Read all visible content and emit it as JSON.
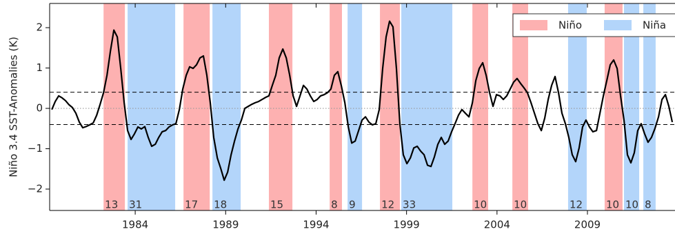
{
  "chart_data": {
    "type": "line",
    "ylabel": "Niño 3.4 SST-Anomalies (K)",
    "xlim": [
      1979.27,
      2013.84
    ],
    "ylim": [
      -2.53,
      2.6
    ],
    "xticks": [
      1984,
      1989,
      1994,
      1999,
      2004,
      2009
    ],
    "yticks": [
      {
        "value": -2,
        "label": "−2"
      },
      {
        "value": -1,
        "label": "−1"
      },
      0,
      1,
      2
    ],
    "legend": "upper right",
    "reference_lines": [
      {
        "value": 0.4,
        "style": "dashed"
      },
      {
        "value": -0.4,
        "style": "dashed"
      },
      {
        "value": 0,
        "style": "dotted"
      }
    ],
    "events": [
      {
        "name": "Niño",
        "color": "#fdb1b1",
        "starts": [
          1982.25,
          1986.67,
          1991.39,
          1994.75,
          1997.53,
          2002.64,
          2004.85,
          2009.95
        ],
        "ends": [
          1983.43,
          1988.12,
          1992.69,
          1995.43,
          1998.63,
          2003.51,
          2005.72,
          2010.94
        ],
        "months": [
          13,
          17,
          15,
          8,
          12,
          10,
          10,
          10
        ]
      },
      {
        "name": "Niña",
        "color": "#b3d5fa",
        "starts": [
          1983.58,
          1988.27,
          1995.74,
          1998.71,
          2007.93,
          2011.02,
          2012.09
        ],
        "ends": [
          1986.21,
          1989.83,
          1996.54,
          2001.53,
          2008.96,
          2011.86,
          2012.77
        ],
        "months": [
          31,
          18,
          9,
          33,
          12,
          10,
          8
        ]
      }
    ],
    "series": [
      {
        "color": "#000000",
        "x": [
          1979.39,
          1979.58,
          1979.77,
          1979.96,
          1980.15,
          1980.34,
          1980.53,
          1980.72,
          1980.91,
          1981.1,
          1981.29,
          1981.48,
          1981.68,
          1981.87,
          1982.06,
          1982.25,
          1982.44,
          1982.63,
          1982.82,
          1983.01,
          1983.2,
          1983.39,
          1983.58,
          1983.77,
          1983.96,
          1984.15,
          1984.34,
          1984.53,
          1984.72,
          1984.91,
          1985.11,
          1985.3,
          1985.49,
          1985.68,
          1985.87,
          1986.06,
          1986.25,
          1986.44,
          1986.63,
          1986.82,
          1987.01,
          1987.2,
          1987.39,
          1987.58,
          1987.77,
          1987.96,
          1988.15,
          1988.34,
          1988.54,
          1988.73,
          1988.92,
          1989.11,
          1989.3,
          1989.49,
          1989.68,
          1989.87,
          1990.06,
          1990.25,
          1990.44,
          1990.63,
          1990.82,
          1991.01,
          1991.2,
          1991.39,
          1991.58,
          1991.77,
          1991.96,
          1992.16,
          1992.35,
          1992.54,
          1992.73,
          1992.92,
          1993.11,
          1993.3,
          1993.49,
          1993.68,
          1993.87,
          1994.06,
          1994.25,
          1994.44,
          1994.63,
          1994.82,
          1995.01,
          1995.2,
          1995.39,
          1995.59,
          1995.78,
          1995.97,
          1996.16,
          1996.35,
          1996.54,
          1996.73,
          1996.92,
          1997.11,
          1997.3,
          1997.49,
          1997.68,
          1997.87,
          1998.06,
          1998.25,
          1998.44,
          1998.63,
          1998.82,
          1999.02,
          1999.21,
          1999.4,
          1999.59,
          1999.78,
          1999.97,
          2000.16,
          2000.35,
          2000.54,
          2000.73,
          2000.92,
          2001.11,
          2001.3,
          2001.49,
          2001.68,
          2001.87,
          2002.06,
          2002.25,
          2002.45,
          2002.64,
          2002.83,
          2003.02,
          2003.21,
          2003.4,
          2003.59,
          2003.78,
          2003.97,
          2004.16,
          2004.35,
          2004.54,
          2004.73,
          2004.92,
          2005.11,
          2005.3,
          2005.49,
          2005.68,
          2005.88,
          2006.07,
          2006.26,
          2006.45,
          2006.64,
          2006.83,
          2007.02,
          2007.21,
          2007.4,
          2007.59,
          2007.78,
          2007.97,
          2008.16,
          2008.35,
          2008.54,
          2008.73,
          2008.92,
          2009.11,
          2009.3,
          2009.5,
          2009.69,
          2009.88,
          2010.07,
          2010.26,
          2010.45,
          2010.64,
          2010.83,
          2011.02,
          2011.21,
          2011.4,
          2011.59,
          2011.78,
          2011.97,
          2012.16,
          2012.35,
          2012.54,
          2012.73,
          2012.93,
          2013.12,
          2013.31,
          2013.5,
          2013.69
        ],
        "values": [
          -0.03,
          0.17,
          0.31,
          0.26,
          0.19,
          0.09,
          0.02,
          -0.12,
          -0.34,
          -0.48,
          -0.45,
          -0.41,
          -0.36,
          -0.17,
          0.1,
          0.39,
          0.82,
          1.42,
          1.94,
          1.77,
          0.99,
          0.14,
          -0.55,
          -0.77,
          -0.63,
          -0.46,
          -0.51,
          -0.45,
          -0.72,
          -0.94,
          -0.89,
          -0.72,
          -0.58,
          -0.55,
          -0.46,
          -0.41,
          -0.38,
          -0.03,
          0.48,
          0.82,
          1.03,
          0.99,
          1.08,
          1.25,
          1.3,
          0.82,
          0.14,
          -0.72,
          -1.23,
          -1.49,
          -1.78,
          -1.58,
          -1.15,
          -0.81,
          -0.51,
          -0.29,
          0.0,
          0.05,
          0.1,
          0.14,
          0.17,
          0.22,
          0.27,
          0.31,
          0.57,
          0.82,
          1.25,
          1.47,
          1.25,
          0.82,
          0.31,
          0.05,
          0.31,
          0.57,
          0.48,
          0.31,
          0.17,
          0.22,
          0.31,
          0.34,
          0.39,
          0.48,
          0.82,
          0.91,
          0.57,
          0.14,
          -0.46,
          -0.86,
          -0.81,
          -0.55,
          -0.29,
          -0.21,
          -0.34,
          -0.41,
          -0.38,
          -0.03,
          0.99,
          1.77,
          2.16,
          2.02,
          0.99,
          -0.38,
          -1.15,
          -1.37,
          -1.23,
          -0.98,
          -0.94,
          -1.06,
          -1.15,
          -1.41,
          -1.44,
          -1.2,
          -0.89,
          -0.72,
          -0.89,
          -0.81,
          -0.58,
          -0.38,
          -0.17,
          -0.03,
          -0.12,
          -0.21,
          0.14,
          0.69,
          0.99,
          1.13,
          0.82,
          0.39,
          0.05,
          0.34,
          0.31,
          0.22,
          0.31,
          0.48,
          0.65,
          0.74,
          0.62,
          0.51,
          0.39,
          0.14,
          -0.12,
          -0.38,
          -0.55,
          -0.24,
          0.22,
          0.57,
          0.79,
          0.39,
          -0.12,
          -0.38,
          -0.72,
          -1.15,
          -1.32,
          -0.98,
          -0.46,
          -0.29,
          -0.46,
          -0.58,
          -0.55,
          -0.12,
          0.31,
          0.69,
          1.08,
          1.2,
          0.99,
          0.31,
          -0.29,
          -1.15,
          -1.35,
          -1.1,
          -0.55,
          -0.38,
          -0.63,
          -0.84,
          -0.72,
          -0.5,
          -0.21,
          0.22,
          0.34,
          0.05,
          -0.34
        ]
      }
    ]
  }
}
